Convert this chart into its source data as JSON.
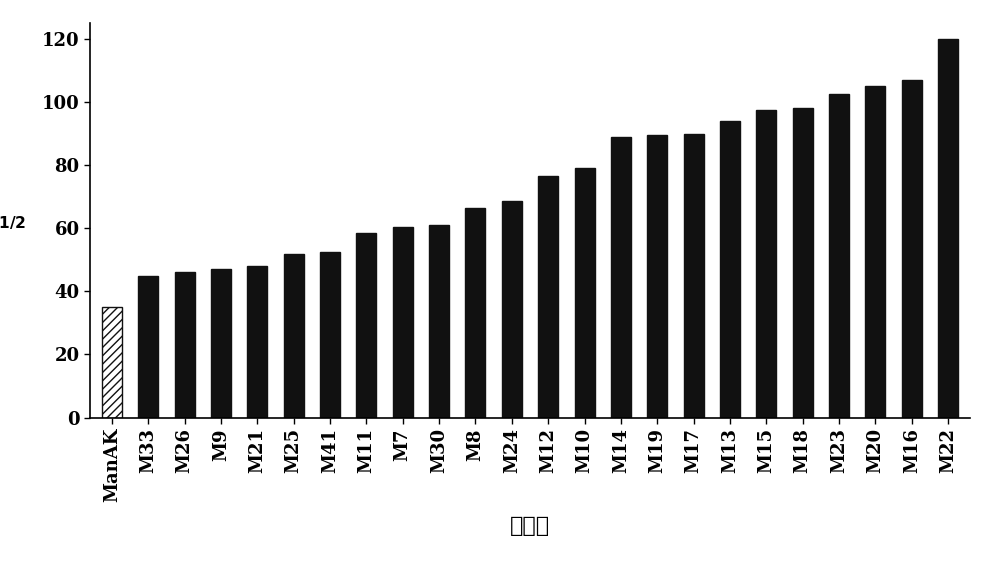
{
  "categories": [
    "ManAK",
    "M33",
    "M26",
    "M9",
    "M21",
    "M25",
    "M41",
    "M11",
    "M7",
    "M30",
    "M8",
    "M24",
    "M12",
    "M10",
    "M14",
    "M19",
    "M17",
    "M13",
    "M15",
    "M18",
    "M23",
    "M20",
    "M16",
    "M22"
  ],
  "values": [
    35,
    45,
    46,
    47,
    48,
    52,
    52.5,
    58.5,
    60.5,
    61,
    66.5,
    68.5,
    76.5,
    79,
    89,
    89.5,
    90,
    94,
    97.5,
    98,
    102.5,
    105,
    107,
    120
  ],
  "bar_color_solid": "#111111",
  "bar_color_hatch": "#ffffff",
  "hatch_pattern": "////",
  "xlabel": "突变体",
  "ylim": [
    0,
    125
  ],
  "yticks": [
    0,
    20,
    40,
    60,
    80,
    100,
    120
  ],
  "tick_fontsize": 13,
  "xlabel_fontsize": 16,
  "ylabel_fontsize": 16,
  "bar_width": 0.55,
  "background_color": "#ffffff"
}
